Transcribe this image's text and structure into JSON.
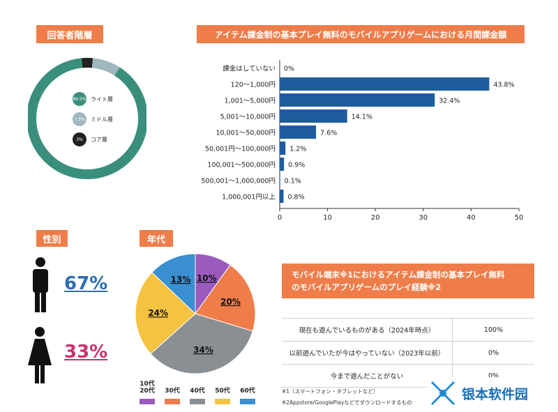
{
  "respondents": {
    "title": "回答者階層",
    "colors": {
      "light": "#3a8f7c",
      "middle": "#9fb7be",
      "core": "#222222"
    },
    "legend": [
      {
        "pct": "89.5%",
        "label": "ライト層"
      },
      {
        "pct": "7.5%",
        "label": "ミドル層"
      },
      {
        "pct": "3%",
        "label": "コア層"
      }
    ]
  },
  "spend": {
    "title": "アイテム課金制の基本プレイ無料のモバイルアプリゲームにおける月間課金額",
    "color": "#1f5c9e"
  },
  "gender": {
    "title": "性別",
    "male_pct": "67%",
    "female_pct": "33%",
    "male_color": "#2f6db3",
    "female_color": "#c8336e"
  },
  "age": {
    "title": "年代",
    "legend": [
      {
        "label": "10代\n20代",
        "color": "#9a5bbd"
      },
      {
        "label": "30代",
        "color": "#ee7d4a"
      },
      {
        "label": "40代",
        "color": "#8a8f93"
      },
      {
        "label": "50代",
        "color": "#f5c242"
      },
      {
        "label": "60代",
        "color": "#3a8fd0"
      }
    ]
  },
  "experience": {
    "title_line1": "モバイル端末※1におけるアイテム課金制の基本プレイ無料",
    "title_line2": "のモバイルアプリゲームのプレイ経験※2",
    "rows": [
      {
        "label": "現在も遊んでいるものがある（2024年時点）",
        "value": "100%"
      },
      {
        "label": "以前遊んでいたが今はやっていない（2023年以前）",
        "value": "0%"
      },
      {
        "label": "今まで遊んだことがない",
        "value": "0%"
      }
    ],
    "notes": [
      "※1（スマートフォン・タブレットなど）",
      "※2Appstore/GooglePlayなどでダウンロードするもの"
    ]
  },
  "watermark": {
    "text": "银本软件园"
  },
  "chart_data": [
    {
      "type": "pie",
      "title": "回答者階層",
      "categories": [
        "ライト層",
        "ミドル層",
        "コア層"
      ],
      "values": [
        89.5,
        7.5,
        3
      ]
    },
    {
      "type": "bar",
      "title": "アイテム課金制の基本プレイ無料のモバイルアプリゲームにおける月間課金額",
      "orientation": "horizontal",
      "categories": [
        "課金はしていない",
        "120～1,000円",
        "1,001～5,000円",
        "5,001～10,000円",
        "10,001～50,000円",
        "50,001円～100,000円",
        "100,001～500,000円",
        "500,001～1,000,000円",
        "1,000,001円以上"
      ],
      "values": [
        0,
        43.8,
        32.4,
        14.1,
        7.6,
        1.2,
        0.9,
        0.1,
        0.8
      ],
      "value_labels": [
        "0%",
        "43.8%",
        "32.4%",
        "14.1%",
        "7.6%",
        "1.2%",
        "0.9%",
        "0.1%",
        "0.8%"
      ],
      "xlim": [
        0,
        50
      ],
      "xticks": [
        0,
        10,
        20,
        30,
        40,
        50
      ]
    },
    {
      "type": "pie",
      "title": "年代",
      "categories": [
        "10代20代",
        "30代",
        "40代",
        "50代",
        "60代"
      ],
      "values": [
        10,
        20,
        34,
        24,
        13
      ],
      "value_labels": [
        "10%",
        "20%",
        "34%",
        "24%",
        "13%"
      ]
    }
  ]
}
